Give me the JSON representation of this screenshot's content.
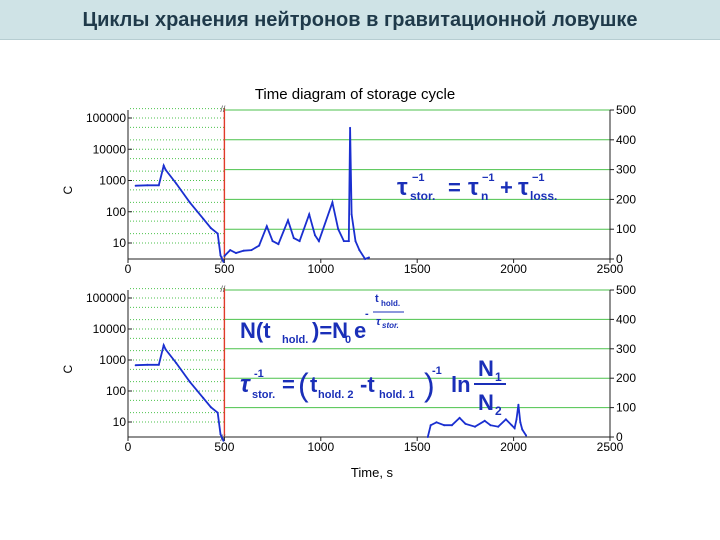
{
  "slide": {
    "title": "Циклы хранения нейтронов в гравитационной ловушке"
  },
  "figure": {
    "title": "Time diagram of storage cycle",
    "xlabel": "Time, s",
    "left_axis_label": "C",
    "break_mark": "//"
  },
  "formulas": {
    "top": {
      "tau": "τ",
      "sup_m1": "−1",
      "sub_stor": "stor.",
      "sub_n": "n",
      "sub_loss": "loss.",
      "eq": "=",
      "plus": "+"
    },
    "bottom1": {
      "lhs_open": "N(t",
      "sub_hold": "hold.",
      "lhs_close": ")=N",
      "sub_0": "0",
      "e": "e",
      "exp_num_t": "t",
      "exp_num_sub": "hold.",
      "exp_minus": "-",
      "exp_den_tau": "τ",
      "exp_den_sub": "stor."
    },
    "bottom2": {
      "tau": "τ",
      "sup_m1": "-1",
      "sub_stor": "stor.",
      "eq": "=",
      "paren_l": "(",
      "t1": "t",
      "sub_hold2": "hold. 2",
      "minus": "-t",
      "sub_hold1": "hold. 1",
      "paren_r": ")",
      "sup_m1b": "-1",
      "ln": "ln",
      "n1": "N",
      "n1_sub": "1",
      "n2": "N",
      "n2_sub": "2"
    }
  },
  "chart_data": [
    {
      "type": "line",
      "panel": "top",
      "x_ticks": [
        0,
        500,
        1000,
        1500,
        2000,
        2500
      ],
      "xlim": [
        0,
        2500
      ],
      "y_left_scale": "log",
      "y_left_ticks": [
        "10",
        "100",
        "1000",
        "10000",
        "100000"
      ],
      "y_left_values": [
        10,
        100,
        1000,
        10000,
        100000
      ],
      "y_right_ticks": [
        0,
        100,
        200,
        300,
        400,
        500
      ],
      "y_right_range": [
        0,
        500
      ],
      "grid": "horizontal dotted green (left, log) and solid green (right, linear)",
      "break_at_x": 500,
      "series": [
        {
          "axis": "left-log",
          "points": [
            [
              40,
              680
            ],
            [
              100,
              700
            ],
            [
              160,
              700
            ],
            [
              185,
              3000
            ],
            [
              195,
              2200
            ],
            [
              250,
              800
            ],
            [
              320,
              200
            ],
            [
              390,
              60
            ],
            [
              430,
              30
            ],
            [
              465,
              20
            ],
            [
              480,
              4
            ],
            [
              495,
              2.5
            ]
          ]
        },
        {
          "axis": "right-linear",
          "points": [
            [
              500,
              10
            ],
            [
              530,
              30
            ],
            [
              560,
              20
            ],
            [
              600,
              28
            ],
            [
              640,
              30
            ],
            [
              680,
              45
            ],
            [
              720,
              110
            ],
            [
              750,
              60
            ],
            [
              780,
              50
            ],
            [
              830,
              130
            ],
            [
              860,
              70
            ],
            [
              890,
              60
            ],
            [
              940,
              150
            ],
            [
              970,
              80
            ],
            [
              990,
              60
            ],
            [
              1060,
              190
            ],
            [
              1090,
              100
            ],
            [
              1120,
              60
            ],
            [
              1145,
              60
            ],
            [
              1152,
              440
            ],
            [
              1160,
              150
            ],
            [
              1180,
              60
            ],
            [
              1200,
              30
            ],
            [
              1230,
              0
            ],
            [
              1250,
              5
            ]
          ]
        }
      ]
    },
    {
      "type": "line",
      "panel": "bottom",
      "x_ticks": [
        0,
        500,
        1000,
        1500,
        2000,
        2500
      ],
      "xlim": [
        0,
        2500
      ],
      "y_left_scale": "log",
      "y_left_ticks": [
        "10",
        "100",
        "1000",
        "10000",
        "100000"
      ],
      "y_left_values": [
        10,
        100,
        1000,
        10000,
        100000
      ],
      "y_right_ticks": [
        0,
        100,
        200,
        300,
        400,
        500
      ],
      "y_right_range": [
        0,
        500
      ],
      "grid": "horizontal dotted green (left, log) and solid green (right, linear)",
      "break_at_x": 500,
      "series": [
        {
          "axis": "left-log",
          "points": [
            [
              40,
              680
            ],
            [
              100,
              700
            ],
            [
              160,
              700
            ],
            [
              185,
              3000
            ],
            [
              195,
              2200
            ],
            [
              250,
              800
            ],
            [
              320,
              200
            ],
            [
              390,
              60
            ],
            [
              430,
              30
            ],
            [
              465,
              20
            ],
            [
              480,
              4
            ],
            [
              495,
              2.5
            ]
          ]
        },
        {
          "axis": "right-linear",
          "points": [
            [
              1555,
              0
            ],
            [
              1570,
              40
            ],
            [
              1600,
              50
            ],
            [
              1640,
              40
            ],
            [
              1680,
              40
            ],
            [
              1720,
              65
            ],
            [
              1750,
              45
            ],
            [
              1800,
              35
            ],
            [
              1850,
              55
            ],
            [
              1880,
              40
            ],
            [
              1920,
              35
            ],
            [
              1960,
              60
            ],
            [
              1990,
              40
            ],
            [
              2005,
              30
            ],
            [
              2015,
              60
            ],
            [
              2025,
              110
            ],
            [
              2035,
              50
            ],
            [
              2045,
              25
            ],
            [
              2065,
              5
            ]
          ]
        }
      ]
    }
  ]
}
